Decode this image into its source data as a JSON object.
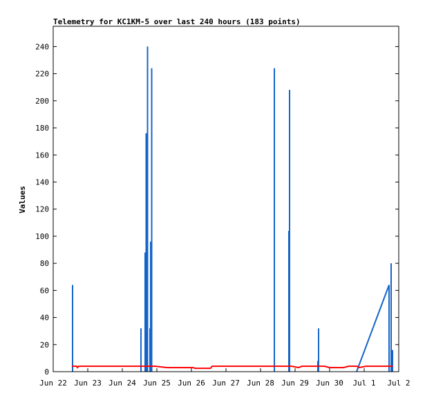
{
  "chart_data": {
    "type": "line",
    "title": "Telemetry for KC1KM-5 over last 240 hours (183 points)",
    "ylabel": "Values",
    "xlabel": "",
    "ylim": [
      0,
      255
    ],
    "xlim": [
      0,
      10
    ],
    "yticks": [
      0,
      20,
      40,
      60,
      80,
      100,
      120,
      140,
      160,
      180,
      200,
      220,
      240
    ],
    "xtick_labels": [
      "Jun 22",
      "Jun 23",
      "Jun 24",
      "Jun 25",
      "Jun 26",
      "Jun 27",
      "Jun 28",
      "Jun 29",
      "Jun 30",
      "Jul 1",
      "Jul 2"
    ],
    "grid": false,
    "legend": "none",
    "series": [
      {
        "color": "#1464c8",
        "spikes": [
          {
            "x": 0.56,
            "y": 64
          },
          {
            "x": 2.54,
            "y": 32
          },
          {
            "x": 2.66,
            "y": 88
          },
          {
            "x": 2.69,
            "y": 176
          },
          {
            "x": 2.73,
            "y": 240
          },
          {
            "x": 2.8,
            "y": 32
          },
          {
            "x": 2.82,
            "y": 96
          },
          {
            "x": 2.85,
            "y": 224
          },
          {
            "x": 6.4,
            "y": 224
          },
          {
            "x": 6.82,
            "y": 104
          },
          {
            "x": 6.84,
            "y": 208
          },
          {
            "x": 7.66,
            "y": 8
          },
          {
            "x": 7.68,
            "y": 32
          },
          {
            "x": 9.72,
            "y": 64
          },
          {
            "x": 9.78,
            "y": 80
          },
          {
            "x": 9.82,
            "y": 16
          }
        ],
        "ramp": [
          {
            "x": 8.78,
            "y": 0
          },
          {
            "x": 9.72,
            "y": 64
          }
        ]
      },
      {
        "color": "#ff0000",
        "points": [
          {
            "x": 0.55,
            "y": 4
          },
          {
            "x": 0.68,
            "y": 4
          },
          {
            "x": 0.7,
            "y": 3
          },
          {
            "x": 0.74,
            "y": 4
          },
          {
            "x": 2.95,
            "y": 4
          },
          {
            "x": 3.3,
            "y": 3
          },
          {
            "x": 4.05,
            "y": 3
          },
          {
            "x": 4.1,
            "y": 2.5
          },
          {
            "x": 4.55,
            "y": 2.5
          },
          {
            "x": 4.6,
            "y": 4
          },
          {
            "x": 6.4,
            "y": 4
          },
          {
            "x": 6.9,
            "y": 4
          },
          {
            "x": 7.1,
            "y": 3
          },
          {
            "x": 7.2,
            "y": 4
          },
          {
            "x": 7.85,
            "y": 4
          },
          {
            "x": 8.0,
            "y": 3
          },
          {
            "x": 8.4,
            "y": 3
          },
          {
            "x": 8.55,
            "y": 4
          },
          {
            "x": 8.8,
            "y": 4
          },
          {
            "x": 8.85,
            "y": 3
          },
          {
            "x": 9.05,
            "y": 4
          },
          {
            "x": 9.82,
            "y": 4
          }
        ]
      }
    ]
  }
}
